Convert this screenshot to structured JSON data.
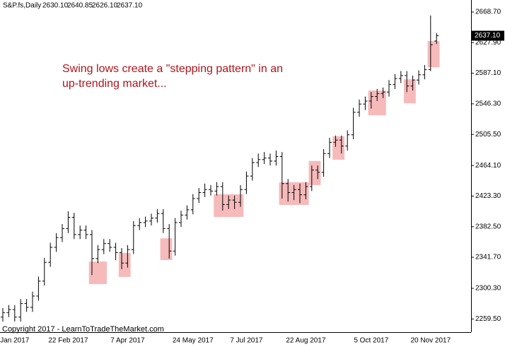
{
  "header": {
    "symbol": "S&P.fs,Daily",
    "last_bar": [
      "2630.10",
      "2640.85",
      "2626.10",
      "2637.10"
    ]
  },
  "chart_data": {
    "type": "ohlc",
    "annotations": [
      "Swing lows create a \"stepping pattern\" in an",
      "up-trending market...",
      "Copyright 2017 - LearnToTradeTheMarket.com"
    ],
    "categories": [
      null,
      null,
      "Jan 2017",
      null,
      null,
      null,
      null,
      null,
      null,
      null,
      null,
      "22 Feb 2017",
      null,
      null,
      null,
      null,
      null,
      null,
      null,
      null,
      null,
      "7 Apr 2017",
      null,
      null,
      null,
      null,
      null,
      null,
      null,
      null,
      null,
      null,
      "24 May 2017",
      null,
      null,
      null,
      null,
      null,
      null,
      null,
      null,
      "7 Jul 2017",
      null,
      null,
      null,
      null,
      null,
      null,
      null,
      null,
      null,
      "22 Aug 2017",
      null,
      null,
      null,
      null,
      null,
      null,
      null,
      null,
      null,
      null,
      "5 Oct 2017",
      null,
      null,
      null,
      null,
      null,
      null,
      null,
      null,
      null,
      "20 Nov 2017",
      null
    ],
    "open": [
      2262,
      2268,
      2272,
      2262,
      2280,
      2275,
      2290,
      2310,
      2335,
      2355,
      2368,
      2380,
      2395,
      2372,
      2378,
      2372,
      2340,
      2352,
      2360,
      2355,
      2348,
      2334,
      2352,
      2384,
      2388,
      2390,
      2394,
      2400,
      2380,
      2350,
      2388,
      2398,
      2405,
      2420,
      2428,
      2432,
      2430,
      2436,
      2412,
      2418,
      2415,
      2432,
      2450,
      2468,
      2472,
      2474,
      2470,
      2476,
      2440,
      2428,
      2432,
      2425,
      2436,
      2458,
      2455,
      2480,
      2495,
      2498,
      2490,
      2505,
      2535,
      2546,
      2550,
      2556,
      2560,
      2562,
      2572,
      2580,
      2584,
      2570,
      2578,
      2585,
      2592,
      2630.1
    ],
    "high": [
      2274,
      2278,
      2278,
      2286,
      2286,
      2296,
      2316,
      2341,
      2361,
      2374,
      2386,
      2403,
      2401,
      2384,
      2384,
      2378,
      2358,
      2366,
      2366,
      2361,
      2354,
      2358,
      2390,
      2394,
      2396,
      2400,
      2406,
      2406,
      2386,
      2394,
      2404,
      2411,
      2426,
      2434,
      2440,
      2438,
      2442,
      2442,
      2424,
      2424,
      2438,
      2456,
      2474,
      2480,
      2482,
      2480,
      2484,
      2482,
      2446,
      2438,
      2440,
      2442,
      2464,
      2464,
      2486,
      2501,
      2504,
      2504,
      2511,
      2541,
      2552,
      2556,
      2562,
      2566,
      2568,
      2578,
      2586,
      2590,
      2590,
      2584,
      2591,
      2598,
      2664,
      2640.85
    ],
    "low": [
      2256,
      2262,
      2256,
      2256,
      2269,
      2269,
      2284,
      2304,
      2329,
      2349,
      2362,
      2374,
      2366,
      2366,
      2366,
      2318,
      2334,
      2346,
      2349,
      2338,
      2326,
      2328,
      2346,
      2378,
      2382,
      2384,
      2388,
      2374,
      2340,
      2344,
      2382,
      2392,
      2399,
      2414,
      2422,
      2424,
      2424,
      2404,
      2406,
      2406,
      2409,
      2426,
      2444,
      2462,
      2466,
      2464,
      2464,
      2420,
      2416,
      2418,
      2414,
      2419,
      2430,
      2446,
      2449,
      2474,
      2489,
      2480,
      2484,
      2499,
      2529,
      2538,
      2540,
      2550,
      2554,
      2556,
      2566,
      2574,
      2562,
      2564,
      2572,
      2579,
      2590,
      2626.1
    ],
    "close": [
      2268,
      2272,
      2262,
      2280,
      2275,
      2290,
      2310,
      2335,
      2355,
      2368,
      2380,
      2395,
      2372,
      2378,
      2372,
      2340,
      2352,
      2360,
      2355,
      2348,
      2334,
      2352,
      2384,
      2388,
      2390,
      2394,
      2400,
      2380,
      2350,
      2388,
      2398,
      2405,
      2420,
      2428,
      2432,
      2430,
      2436,
      2412,
      2418,
      2415,
      2432,
      2450,
      2468,
      2472,
      2474,
      2470,
      2476,
      2440,
      2428,
      2432,
      2425,
      2436,
      2458,
      2455,
      2480,
      2495,
      2498,
      2490,
      2505,
      2535,
      2546,
      2550,
      2556,
      2560,
      2562,
      2572,
      2580,
      2584,
      2570,
      2578,
      2585,
      2592,
      2625,
      2637.1
    ],
    "color": "#000000",
    "highlight_color": "#f4a9a9",
    "highlights": [
      {
        "from": 15,
        "to": 17,
        "low": 2306,
        "high": 2336
      },
      {
        "from": 20,
        "to": 21,
        "low": 2315.5,
        "high": 2347.5
      },
      {
        "from": 27,
        "to": 28,
        "low": 2338,
        "high": 2367
      },
      {
        "from": 36,
        "to": 40,
        "low": 2395.5,
        "high": 2425.7
      },
      {
        "from": 47,
        "to": 51,
        "low": 2411.5,
        "high": 2441.7
      },
      {
        "from": 52,
        "to": 53,
        "low": 2438,
        "high": 2470
      },
      {
        "from": 56,
        "to": 57,
        "low": 2471.8,
        "high": 2503
      },
      {
        "from": 62,
        "to": 64,
        "low": 2531,
        "high": 2564
      },
      {
        "from": 68,
        "to": 69,
        "low": 2547,
        "high": 2579
      },
      {
        "from": 72,
        "to": 73,
        "low": 2595,
        "high": 2630
      }
    ],
    "ylim": [
      2241.9,
      2684.7
    ],
    "yticks": [
      {
        "value": 2259.5,
        "label": "2259.50"
      },
      {
        "value": 2300.3,
        "label": "2300.30"
      },
      {
        "value": 2341.7,
        "label": "2341.70"
      },
      {
        "value": 2382.5,
        "label": "2382.50"
      },
      {
        "value": 2423.3,
        "label": "2423.30"
      },
      {
        "value": 2464.1,
        "label": "2464.10"
      },
      {
        "value": 2505.5,
        "label": "2505.50"
      },
      {
        "value": 2546.3,
        "label": "2546.30"
      },
      {
        "value": 2587.1,
        "label": "2587.10"
      },
      {
        "value": 2627.9,
        "label": "2627.90"
      },
      {
        "value": 2668.7,
        "label": "2668.70"
      }
    ]
  }
}
